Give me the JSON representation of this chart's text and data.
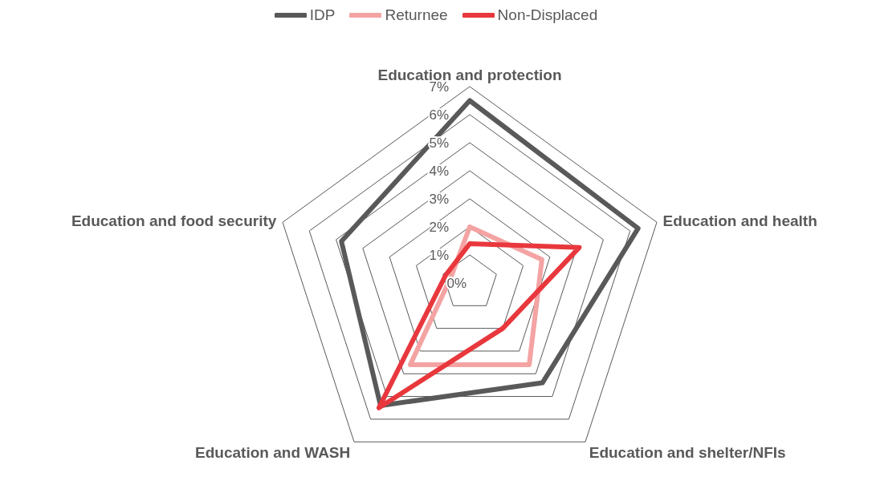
{
  "chart_data": {
    "type": "radar",
    "categories": [
      "Education and protection",
      "Education and health",
      "Education and shelter/NFIs",
      "Education and WASH",
      "Education and food security"
    ],
    "series": [
      {
        "name": "IDP",
        "color": "#595959",
        "values": [
          6.5,
          6.3,
          4.4,
          5.4,
          4.8
        ]
      },
      {
        "name": "Returnee",
        "color": "#f4a3a3",
        "values": [
          2.0,
          2.7,
          3.6,
          3.6,
          0.7
        ]
      },
      {
        "name": "Non-Displaced",
        "color": "#e8383d",
        "values": [
          1.4,
          4.1,
          2.0,
          5.5,
          0.9
        ]
      }
    ],
    "ylim": [
      0,
      7
    ],
    "yticks": [
      {
        "value": 0,
        "label": "0%"
      },
      {
        "value": 1,
        "label": "1%"
      },
      {
        "value": 2,
        "label": "2%"
      },
      {
        "value": 3,
        "label": "3%"
      },
      {
        "value": 4,
        "label": "4%"
      },
      {
        "value": 5,
        "label": "5%"
      },
      {
        "value": 6,
        "label": "6%"
      },
      {
        "value": 7,
        "label": "7%"
      }
    ],
    "grid": true,
    "legend": "top",
    "marker": "none"
  }
}
